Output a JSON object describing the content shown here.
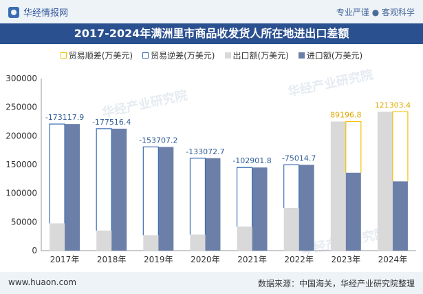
{
  "header": {
    "brand": "华经情报网",
    "tagline": "专业严谨 ● 客观科学"
  },
  "footer": {
    "site": "www.huaon.com",
    "source": "数据来源：中国海关，华经产业研究院整理"
  },
  "watermarks": [
    "华经产业研究院",
    "华经产业研究院",
    "华经产业研究院"
  ],
  "colors": {
    "surplus": "#f5c000",
    "deficit": "#3a6db4",
    "export": "#d9d9d9",
    "import": "#6b7fa8",
    "surplus_label": "#e0a800",
    "deficit_label": "#2f5b96"
  },
  "chart_data": {
    "type": "bar",
    "title": "2017-2024年满洲里市商品收发货人所在地进出口差额",
    "categories": [
      "2017年",
      "2018年",
      "2019年",
      "2020年",
      "2021年",
      "2022年",
      "2023年",
      "2024年"
    ],
    "ylim": [
      0,
      300000
    ],
    "yticks": [
      0,
      50000,
      100000,
      150000,
      200000,
      250000,
      300000
    ],
    "legend_position": "top",
    "legend": [
      "贸易顺差(万美元)",
      "贸易逆差(万美元)",
      "出口额(万美元)",
      "进口额(万美元)"
    ],
    "series": [
      {
        "name": "出口额(万美元)",
        "values": [
          47500,
          35000,
          27000,
          28000,
          42000,
          74500,
          225000,
          242000
        ]
      },
      {
        "name": "进口额(万美元)",
        "values": [
          220617.9,
          212516.4,
          180707.2,
          161072.7,
          144901.8,
          149514.7,
          135803.2,
          120696.6
        ]
      }
    ],
    "balance": {
      "values": [
        -173117.9,
        -177516.4,
        -153707.2,
        -133072.7,
        -102901.8,
        -75014.7,
        89196.8,
        121303.4
      ],
      "labels": [
        "-173117.9",
        "-177516.4",
        "-153707.2",
        "-133072.7",
        "-102901.8",
        "-75014.7",
        "89196.8",
        "121303.4"
      ]
    }
  }
}
